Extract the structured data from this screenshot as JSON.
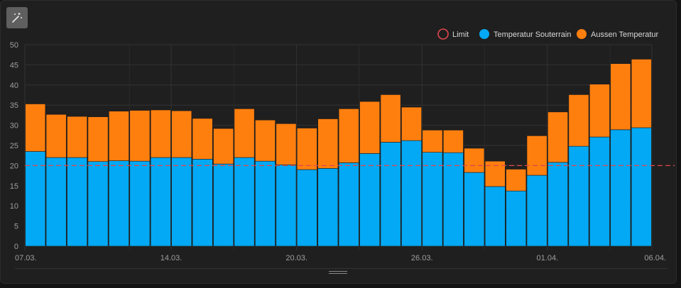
{
  "toolbar": {
    "magic_icon": "magic-wand-icon"
  },
  "chart_data": {
    "type": "bar",
    "stacked": true,
    "ylim": [
      0,
      50
    ],
    "y_ticks": [
      0,
      5,
      10,
      15,
      20,
      25,
      30,
      35,
      40,
      45,
      50
    ],
    "x_tick_labels": [
      {
        "label": "07.03.",
        "index": 0
      },
      {
        "label": "14.03.",
        "index": 7
      },
      {
        "label": "20.03.",
        "index": 13
      },
      {
        "label": "26.03.",
        "index": 19
      },
      {
        "label": "01.04.",
        "index": 25
      },
      {
        "label": "06.04.",
        "index": 30
      }
    ],
    "grid": true,
    "legend_position": "top-right",
    "limit": {
      "name": "Limit",
      "value": 20,
      "color": "#e0474c"
    },
    "series": [
      {
        "name": "Temperatur Souterrain",
        "color": "#03a9f4",
        "values": [
          23.5,
          22,
          22,
          21,
          21.2,
          21.1,
          22,
          22,
          21.6,
          20.4,
          22,
          21.1,
          20.2,
          19,
          19.3,
          20.7,
          23,
          25.8,
          26.2,
          23.3,
          23.2,
          18.3,
          14.8,
          13.7,
          17.6,
          20.8,
          24.8,
          27.1,
          28.9,
          29.4
        ]
      },
      {
        "name": "Aussen Temperatur",
        "color": "#ff7f0e",
        "values": [
          11.8,
          10.7,
          10.2,
          11.1,
          12.3,
          12.6,
          11.8,
          11.6,
          10.1,
          8.8,
          12.1,
          10.2,
          10.2,
          10.3,
          12.3,
          13.4,
          12.9,
          11.8,
          8.3,
          5.5,
          5.6,
          6,
          6.3,
          5.4,
          9.8,
          12.5,
          12.8,
          13.1,
          16.4,
          17
        ]
      }
    ]
  }
}
